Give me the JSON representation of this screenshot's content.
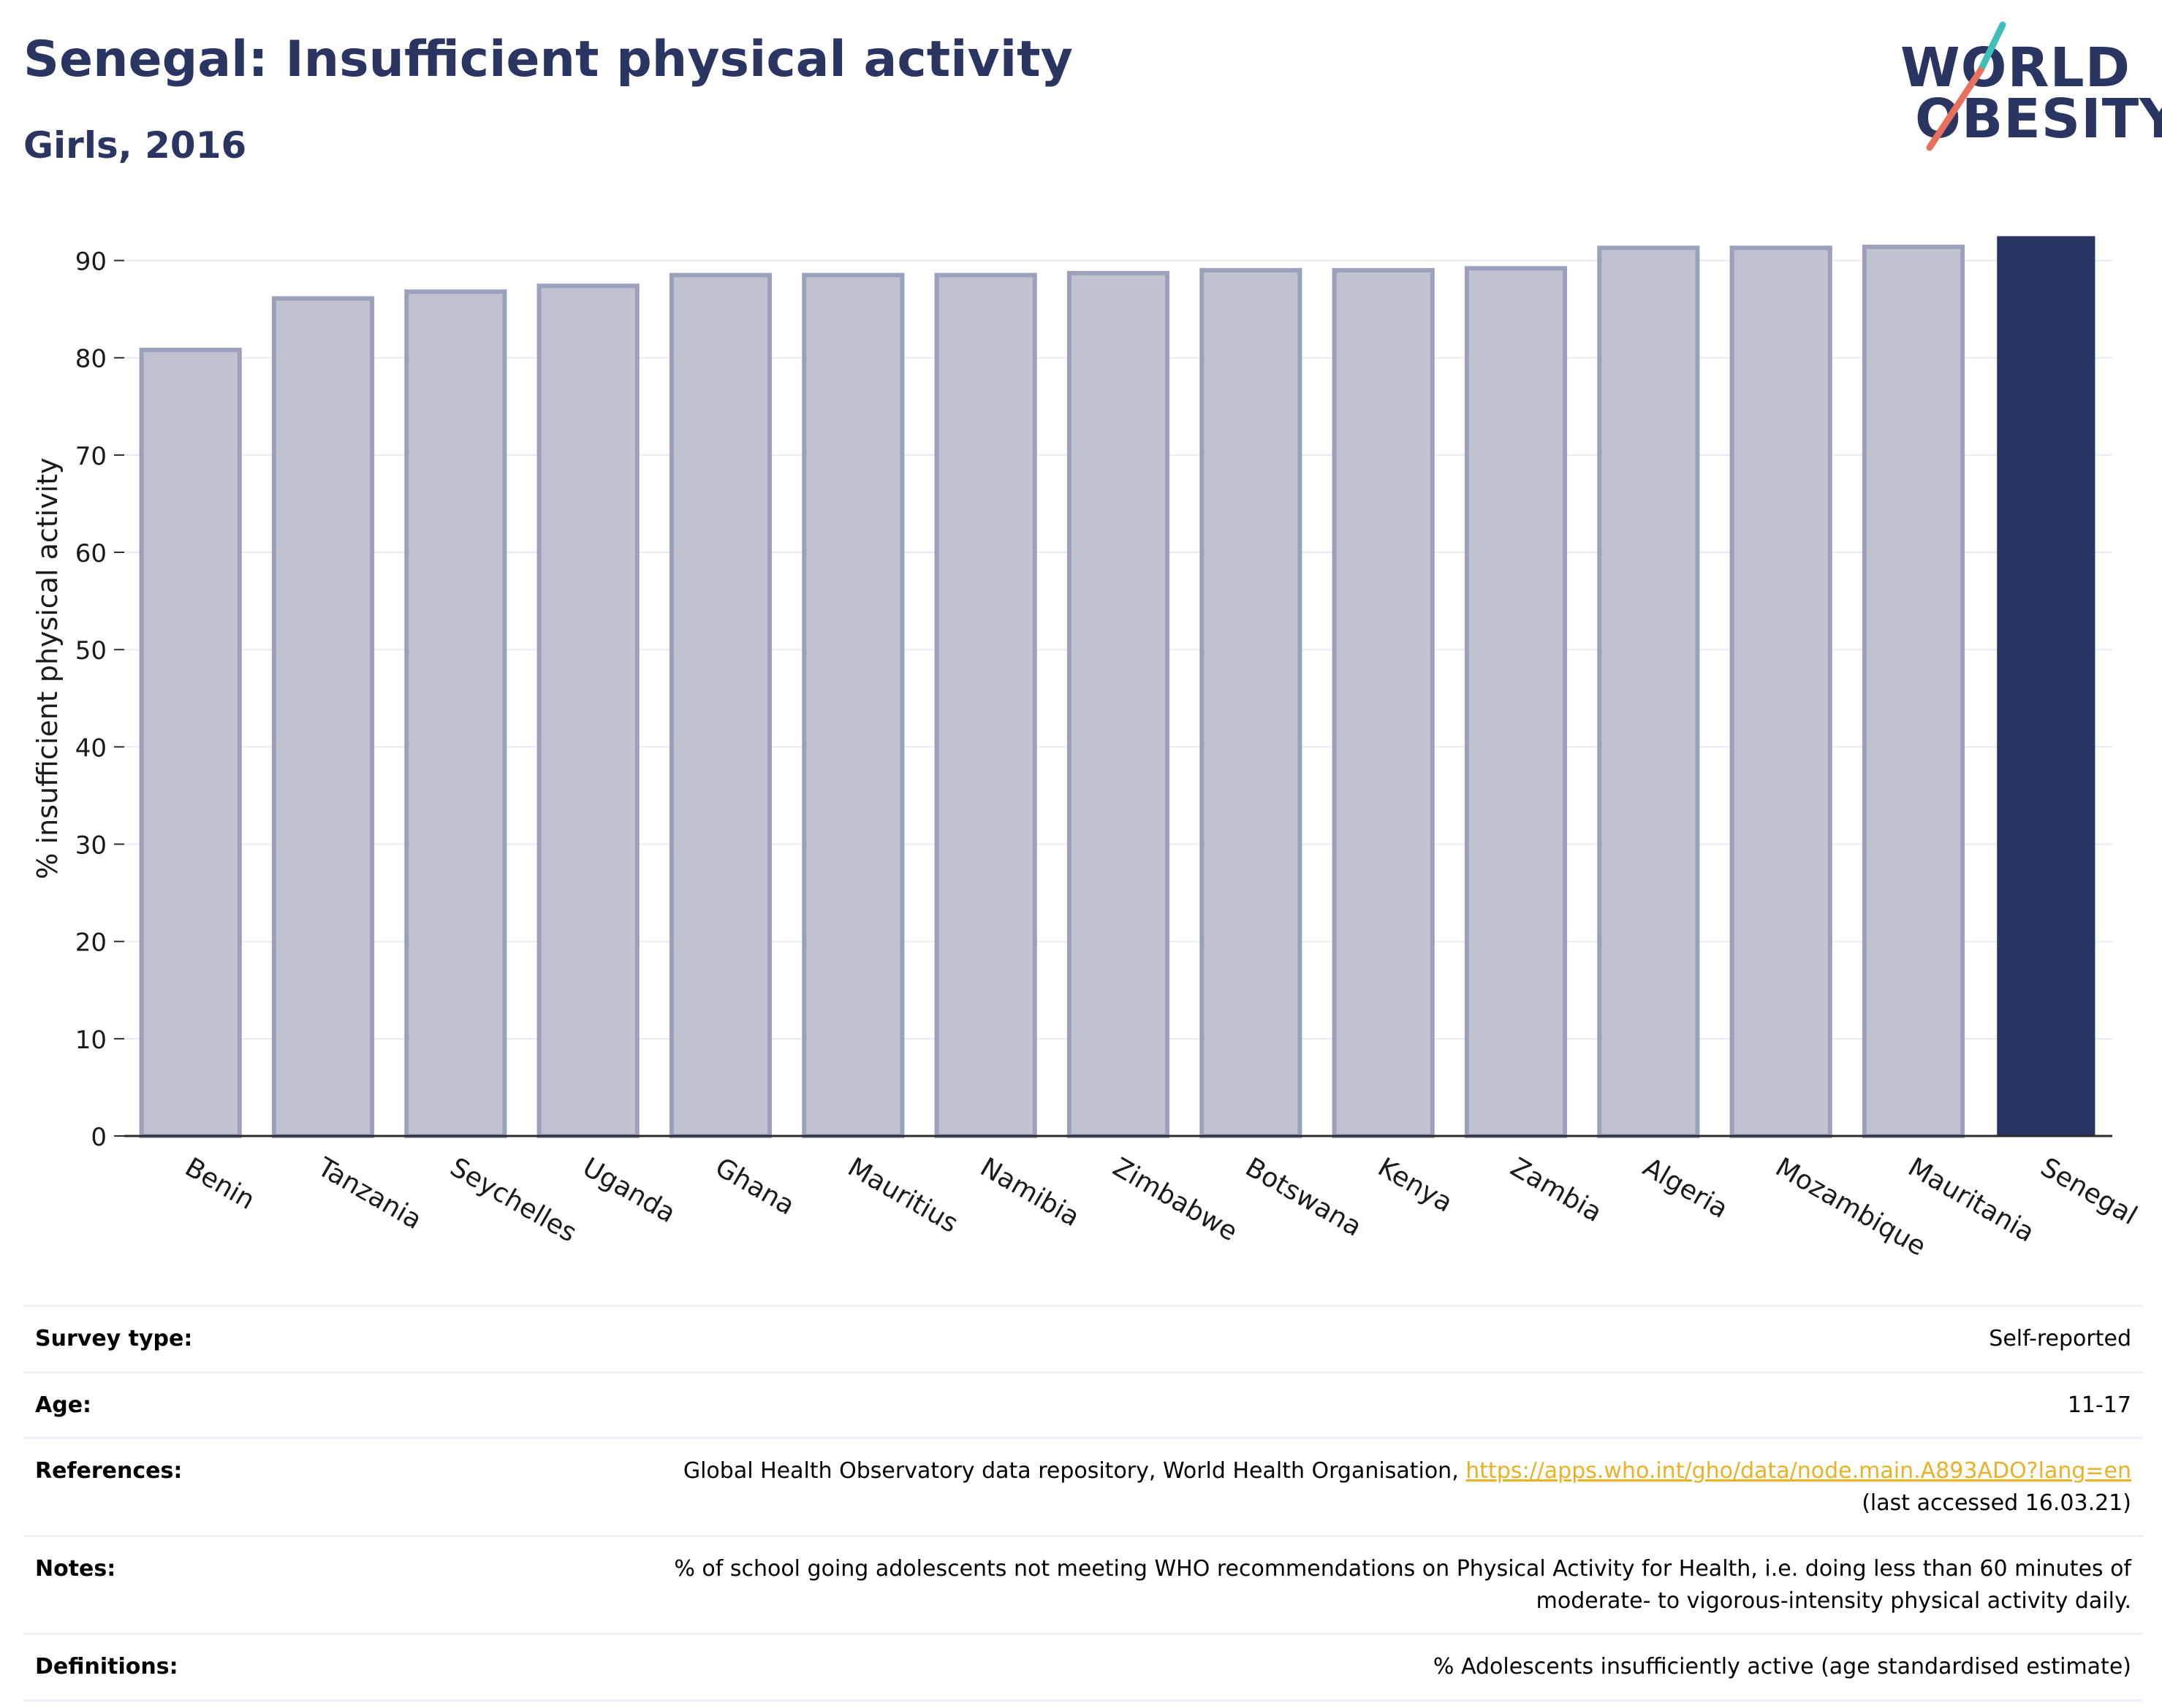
{
  "header": {
    "title": "Senegal: Insufficient physical activity",
    "subtitle": "Girls, 2016"
  },
  "logo": {
    "line1": "WORLD",
    "line2": "OBESITY"
  },
  "chart_data": {
    "type": "bar",
    "title": "Senegal: Insufficient physical activity",
    "subtitle": "Girls, 2016",
    "xlabel": "",
    "ylabel": "% insufficient physical activity",
    "categories": [
      "Benin",
      "Tanzania",
      "Seychelles",
      "Uganda",
      "Ghana",
      "Mauritius",
      "Namibia",
      "Zimbabwe",
      "Botswana",
      "Kenya",
      "Zambia",
      "Algeria",
      "Mozambique",
      "Mauritania",
      "Senegal"
    ],
    "values": [
      80.8,
      86.1,
      86.8,
      87.4,
      88.5,
      88.5,
      88.5,
      88.7,
      89.0,
      89.0,
      89.2,
      91.3,
      91.3,
      91.4,
      92.5
    ],
    "highlight": "Senegal",
    "ylim": [
      0,
      95
    ],
    "yticks": [
      0,
      10,
      20,
      30,
      40,
      50,
      60,
      70,
      80,
      90
    ],
    "grid": true,
    "colors": {
      "bar": "#bfc2cf",
      "bar_border": "#9ba1ba",
      "highlight": "#2b3562",
      "grid": "#e9ebf1",
      "axis": "#2b2b2b"
    }
  },
  "meta": {
    "survey_type_label": "Survey type:",
    "survey_type_value": "Self-reported",
    "age_label": "Age:",
    "age_value": "11-17",
    "references_label": "References:",
    "references_text": "Global Health Observatory data repository, World Health Organisation, ",
    "references_link": "https://apps.who.int/gho/data/node.main.A893ADO?lang=en",
    "references_accessed": "(last accessed 16.03.21)",
    "notes_label": "Notes:",
    "notes_line1": "% of school going adolescents not meeting WHO recommendations on Physical Activity for Health, i.e. doing less than 60 minutes of",
    "notes_line2": "moderate- to vigorous-intensity physical activity daily.",
    "definitions_label": "Definitions:",
    "definitions_value": "% Adolescents insufficiently active (age standardised estimate)"
  }
}
